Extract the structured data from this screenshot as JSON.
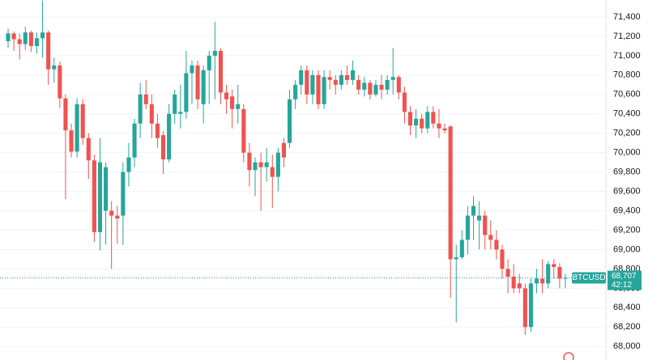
{
  "chart_data": {
    "type": "candlestick",
    "symbol": "BTCUSD",
    "up_color": "#26a69a",
    "down_color": "#ef5350",
    "ylim": [
      67860,
      71575
    ],
    "yticks": [
      {
        "value": 68000,
        "label": "68,000"
      },
      {
        "value": 68200,
        "label": "68,200"
      },
      {
        "value": 68400,
        "label": "68,400"
      },
      {
        "value": 68600,
        "label": "68,600"
      },
      {
        "value": 68800,
        "label": "68,800"
      },
      {
        "value": 69000,
        "label": "69,000"
      },
      {
        "value": 69200,
        "label": "69,200"
      },
      {
        "value": 69400,
        "label": "69,400"
      },
      {
        "value": 69600,
        "label": "69,600"
      },
      {
        "value": 69800,
        "label": "69,800"
      },
      {
        "value": 70000,
        "label": "70,000"
      },
      {
        "value": 70200,
        "label": "70,200"
      },
      {
        "value": 70400,
        "label": "70,400"
      },
      {
        "value": 70600,
        "label": "70,600"
      },
      {
        "value": 70800,
        "label": "70,800"
      },
      {
        "value": 71000,
        "label": "71,000"
      },
      {
        "value": 71200,
        "label": "71,200"
      },
      {
        "value": 71400,
        "label": "71,400"
      }
    ],
    "grid": true,
    "price_line": {
      "value": 68707,
      "label": "68,707",
      "countdown": "42:12"
    },
    "open": [
      71150,
      71230,
      71170,
      71120,
      71240,
      71100,
      71180,
      71240,
      70860,
      70900,
      70560,
      70230,
      70010,
      70500,
      70150,
      69920,
      69180,
      69400,
      69400,
      69350,
      69350,
      69800,
      69950,
      70300,
      70600,
      70500,
      70300,
      70180,
      69930,
      70400,
      70400,
      70420,
      70820,
      70900,
      70500,
      70850,
      71000,
      71050,
      70620,
      70580,
      70450,
      70450,
      70000,
      69820,
      69900,
      69850,
      69850,
      69750,
      70100,
      70100,
      70550,
      70700,
      70850,
      70600,
      70800,
      70500,
      70780,
      70750,
      70700,
      70800,
      70750,
      70750,
      70650,
      70720,
      70600,
      70700,
      70650,
      70750,
      70780,
      70620,
      70420,
      70280,
      70350,
      70250,
      70420,
      70300,
      70250,
      70270,
      68900,
      68920,
      69100,
      69350,
      69300,
      69350,
      69150,
      69100,
      69000,
      68800,
      68720,
      68650,
      68600,
      68200,
      68650,
      68700,
      68650,
      68850,
      68820,
      68700
    ],
    "high": [
      71280,
      71250,
      71230,
      71300,
      71260,
      71240,
      71570,
      71260,
      70980,
      70940,
      70600,
      70300,
      70560,
      70550,
      70200,
      69980,
      70150,
      69900,
      69500,
      69450,
      69900,
      70100,
      70350,
      70720,
      70750,
      70600,
      70400,
      70220,
      70500,
      70650,
      70700,
      71050,
      70950,
      70950,
      70900,
      71050,
      71350,
      71080,
      70700,
      70650,
      70700,
      70500,
      70100,
      69950,
      70000,
      70050,
      69980,
      70050,
      70150,
      70650,
      70750,
      70900,
      70900,
      70850,
      70850,
      70850,
      70850,
      70800,
      70850,
      70900,
      70950,
      70800,
      70780,
      70750,
      70750,
      70800,
      70800,
      71080,
      70800,
      70680,
      70480,
      70450,
      70400,
      70480,
      70480,
      70450,
      70300,
      70280,
      69050,
      69200,
      69450,
      69550,
      69500,
      69400,
      69300,
      69200,
      69050,
      68900,
      68850,
      68750,
      68650,
      68700,
      68800,
      68900,
      68880,
      68900,
      68860,
      68750
    ],
    "low": [
      71080,
      71050,
      70960,
      71060,
      71040,
      71020,
      70980,
      70700,
      70720,
      70460,
      69520,
      69950,
      69950,
      70080,
      69730,
      69080,
      68990,
      69050,
      68800,
      69060,
      69050,
      69650,
      69850,
      70150,
      70450,
      70150,
      70050,
      69780,
      69900,
      70300,
      70250,
      70350,
      70500,
      70450,
      70300,
      70500,
      70550,
      70500,
      70400,
      70250,
      70300,
      69900,
      69650,
      69550,
      69400,
      69700,
      69430,
      69600,
      69850,
      70050,
      70450,
      70600,
      70500,
      70500,
      70450,
      70450,
      70650,
      70600,
      70650,
      70700,
      70700,
      70600,
      70580,
      70550,
      70580,
      70550,
      70600,
      70600,
      70550,
      70300,
      70180,
      70150,
      70200,
      70200,
      70250,
      70150,
      70200,
      68500,
      68250,
      68900,
      68950,
      69100,
      69000,
      69000,
      69000,
      68900,
      68700,
      68550,
      68550,
      68550,
      68120,
      68150,
      68550,
      68550,
      68600,
      68700,
      68600,
      68600
    ],
    "close": [
      71230,
      71170,
      71120,
      71240,
      71100,
      71180,
      71240,
      70860,
      70900,
      70560,
      70230,
      70010,
      70500,
      70150,
      69920,
      69180,
      69900,
      69850,
      69350,
      69320,
      69800,
      69950,
      70300,
      70600,
      70500,
      70300,
      70150,
      69930,
      70400,
      70600,
      70420,
      70820,
      70900,
      70550,
      70850,
      71000,
      71050,
      70620,
      70550,
      70450,
      70500,
      70000,
      69820,
      69900,
      69850,
      69900,
      69750,
      70000,
      69950,
      70550,
      70700,
      70850,
      70600,
      70800,
      70500,
      70780,
      70750,
      70700,
      70800,
      70750,
      70850,
      70650,
      70720,
      70600,
      70700,
      70650,
      70750,
      70780,
      70620,
      70420,
      70280,
      70350,
      70250,
      70420,
      70300,
      70250,
      70230,
      68900,
      68920,
      69100,
      69350,
      69450,
      69350,
      69150,
      69100,
      69000,
      68800,
      68720,
      68600,
      68600,
      68200,
      68650,
      68700,
      68650,
      68850,
      68820,
      68700,
      68707
    ]
  }
}
